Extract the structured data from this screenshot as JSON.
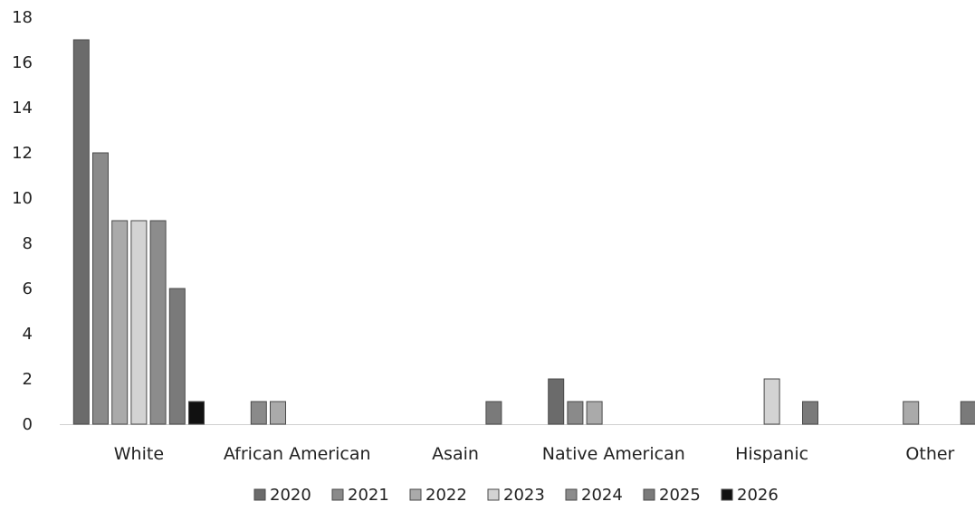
{
  "chart_data": {
    "type": "bar",
    "title": "",
    "xlabel": "",
    "ylabel": "",
    "ylim": [
      0,
      18
    ],
    "yticks": [
      0,
      2,
      4,
      6,
      8,
      10,
      12,
      14,
      16,
      18
    ],
    "grid": false,
    "legend": "bottom",
    "categories": [
      "White",
      "African American",
      "Asain",
      "Native American",
      "Hispanic",
      "Other"
    ],
    "series": [
      {
        "name": "2020",
        "color": "#6b6b6b",
        "values": [
          17,
          0,
          0,
          2,
          0,
          0
        ]
      },
      {
        "name": "2021",
        "color": "#8a8a8a",
        "values": [
          12,
          1,
          0,
          1,
          0,
          0
        ]
      },
      {
        "name": "2022",
        "color": "#aaaaaa",
        "values": [
          9,
          1,
          0,
          1,
          0,
          1
        ]
      },
      {
        "name": "2023",
        "color": "#d3d3d3",
        "values": [
          9,
          0,
          0,
          0,
          2,
          0
        ]
      },
      {
        "name": "2024",
        "color": "#8c8c8c",
        "values": [
          9,
          0,
          0,
          0,
          0,
          0
        ]
      },
      {
        "name": "2025",
        "color": "#7a7a7a",
        "values": [
          6,
          0,
          1,
          0,
          1,
          1
        ]
      },
      {
        "name": "2026",
        "color": "#111111",
        "values": [
          1,
          0,
          0,
          0,
          0,
          0
        ]
      }
    ]
  }
}
